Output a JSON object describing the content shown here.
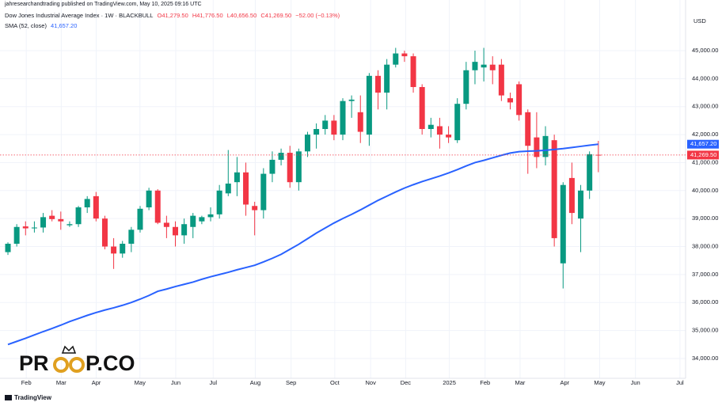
{
  "header": {
    "publisher": "jahresearchandtrading published on TradingView.com, May 10, 2025 09:16 UTC",
    "brand": "TradingView"
  },
  "watermark": [
    "PR",
    "P.CO"
  ],
  "chart_data": {
    "type": "candlestick",
    "title": "Dow Jones Industrial Average Index · 1W · BLACKBULL",
    "currency": "USD",
    "ohlc_labels": {
      "open": "O41,279.50",
      "high": "H41,776.50",
      "low": "L40,656.50",
      "close": "C41,269.50",
      "change": "−52.00 (−0.13%)"
    },
    "last_close_label": "41,269.50",
    "up_color": "#089981",
    "down_color": "#f23645",
    "x": [
      0,
      1,
      2,
      3,
      4,
      5,
      6,
      7,
      8,
      9,
      10,
      11,
      12,
      13,
      14,
      15,
      16,
      17,
      18,
      19,
      20,
      21,
      22,
      23,
      24,
      25,
      26,
      27,
      28,
      29,
      30,
      31,
      32,
      33,
      34,
      35,
      36,
      37,
      38,
      39,
      40,
      41,
      42,
      43,
      44,
      45,
      46,
      47,
      48,
      49,
      50,
      51,
      52,
      53,
      54,
      55,
      56,
      57,
      58,
      59,
      60,
      61,
      62,
      63,
      64,
      65,
      66,
      67
    ],
    "open": [
      37800,
      38100,
      38720,
      38650,
      38680,
      39100,
      38980,
      38760,
      38800,
      39400,
      39800,
      39000,
      38000,
      37750,
      38100,
      38600,
      39400,
      40000,
      38850,
      38700,
      38400,
      38700,
      38900,
      39050,
      39150,
      39900,
      40300,
      40650,
      39450,
      39300,
      40600,
      41100,
      41350,
      40300,
      41400,
      42000,
      42200,
      42500,
      42000,
      43200,
      42800,
      42000,
      44100,
      43500,
      44500,
      44900,
      44800,
      43700,
      42200,
      42300,
      42000,
      41800,
      43100,
      44300,
      44400,
      44500,
      44500,
      43300,
      43800,
      42800,
      41900,
      41200,
      41800,
      37400,
      40450,
      39000,
      40000,
      41279.5
    ],
    "high": [
      38150,
      38800,
      38900,
      38900,
      39200,
      39300,
      39250,
      38900,
      39450,
      39800,
      39950,
      39100,
      38300,
      38200,
      38700,
      39450,
      40100,
      40050,
      39100,
      38900,
      39000,
      39200,
      39100,
      39400,
      40200,
      41450,
      41200,
      41000,
      39600,
      40800,
      41400,
      41500,
      41600,
      41500,
      42100,
      42400,
      42700,
      42700,
      43300,
      43400,
      43400,
      44200,
      44300,
      44700,
      45100,
      45000,
      44900,
      43800,
      42600,
      42600,
      42300,
      43300,
      44600,
      45000,
      45100,
      44800,
      44700,
      43500,
      43900,
      42900,
      42800,
      42300,
      42000,
      40300,
      41000,
      40200,
      41400,
      41776.5
    ],
    "low": [
      37700,
      38000,
      38400,
      38500,
      38500,
      38900,
      38600,
      38700,
      38700,
      39200,
      38900,
      37900,
      37200,
      37600,
      37800,
      38500,
      39300,
      38800,
      38300,
      38000,
      38100,
      38300,
      38800,
      38900,
      39000,
      39800,
      39800,
      39100,
      38400,
      39000,
      40300,
      40900,
      40100,
      40000,
      41200,
      41500,
      42000,
      41800,
      41800,
      42600,
      41700,
      41600,
      42900,
      42900,
      44400,
      44600,
      43500,
      42000,
      41900,
      41500,
      41700,
      41700,
      42900,
      43800,
      43900,
      43800,
      43200,
      42900,
      42500,
      40600,
      40800,
      40900,
      38000,
      36500,
      38800,
      37800,
      39700,
      40656.5
    ],
    "close": [
      38100,
      38700,
      38650,
      38680,
      39050,
      38980,
      38900,
      38800,
      39400,
      39700,
      39000,
      38000,
      37750,
      38100,
      38600,
      39350,
      40000,
      38850,
      38700,
      38400,
      38800,
      39100,
      39050,
      39150,
      40000,
      40250,
      40650,
      39500,
      39300,
      40600,
      41100,
      41350,
      40300,
      41400,
      42000,
      42200,
      42500,
      42000,
      43200,
      43250,
      42100,
      44100,
      43500,
      44500,
      44900,
      44800,
      43700,
      42200,
      42350,
      42000,
      41900,
      43100,
      44300,
      44600,
      44500,
      44300,
      43400,
      43150,
      42700,
      41600,
      41200,
      41950,
      38300,
      40200,
      39200,
      40000,
      41300,
      41269.5
    ],
    "series": [
      {
        "name": "SMA (52, close)",
        "color": "#2962ff",
        "last_label": "41,657.20",
        "values": [
          34500,
          34610,
          34720,
          34840,
          34960,
          35070,
          35190,
          35320,
          35430,
          35540,
          35640,
          35730,
          35810,
          35900,
          36000,
          36120,
          36250,
          36400,
          36480,
          36570,
          36650,
          36730,
          36830,
          36920,
          37000,
          37080,
          37170,
          37250,
          37330,
          37450,
          37580,
          37720,
          37900,
          38080,
          38280,
          38480,
          38660,
          38840,
          39000,
          39150,
          39310,
          39480,
          39650,
          39800,
          39950,
          40090,
          40210,
          40320,
          40420,
          40520,
          40630,
          40750,
          40880,
          41000,
          41080,
          41170,
          41260,
          41340,
          41390,
          41410,
          41420,
          41440,
          41470,
          41500,
          41540,
          41580,
          41620,
          41657.2
        ]
      }
    ],
    "xlim": [
      -0.9,
      76.9
    ],
    "xticks": [
      {
        "value": 2.08,
        "label": "Feb"
      },
      {
        "value": 6.05,
        "label": "Mar"
      },
      {
        "value": 10.02,
        "label": "Apr"
      },
      {
        "value": 14.98,
        "label": "May"
      },
      {
        "value": 19.04,
        "label": "Jun"
      },
      {
        "value": 23.29,
        "label": "Jul"
      },
      {
        "value": 28.07,
        "label": "Aug"
      },
      {
        "value": 32.13,
        "label": "Sep"
      },
      {
        "value": 37.09,
        "label": "Oct"
      },
      {
        "value": 41.16,
        "label": "Nov"
      },
      {
        "value": 45.13,
        "label": "Dec"
      },
      {
        "value": 50.09,
        "label": "2025"
      },
      {
        "value": 54.15,
        "label": "Feb"
      },
      {
        "value": 58.12,
        "label": "Mar"
      },
      {
        "value": 63.18,
        "label": "Apr"
      },
      {
        "value": 67.15,
        "label": "May"
      },
      {
        "value": 71.21,
        "label": "Jun"
      },
      {
        "value": 76.26,
        "label": "Jul"
      }
    ],
    "ylim": [
      33348,
      46386
    ],
    "yticks": [
      {
        "value": 34000,
        "label": "34,000.00"
      },
      {
        "value": 35000,
        "label": "35,000.00"
      },
      {
        "value": 36000,
        "label": "36,000.00"
      },
      {
        "value": 37000,
        "label": "37,000.00"
      },
      {
        "value": 38000,
        "label": "38,000.00"
      },
      {
        "value": 39000,
        "label": "39,000.00"
      },
      {
        "value": 40000,
        "label": "40,000.00"
      },
      {
        "value": 41000,
        "label": "41,000.00"
      },
      {
        "value": 42000,
        "label": "42,000.00"
      },
      {
        "value": 43000,
        "label": "43,000.00"
      },
      {
        "value": 44000,
        "label": "44,000.00"
      },
      {
        "value": 45000,
        "label": "45,000.00"
      }
    ],
    "grid": true
  }
}
